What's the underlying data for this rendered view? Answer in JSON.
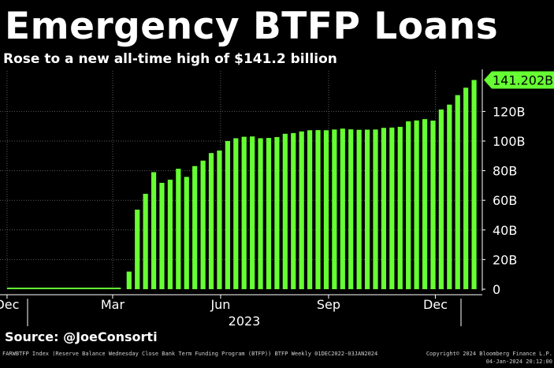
{
  "header": {
    "title": "Emergency BTFP Loans",
    "subtitle": "Rose to a new all-time high of $141.2 billion"
  },
  "chart_data": {
    "type": "bar",
    "color": "#66ff33",
    "ylim": [
      0,
      150
    ],
    "yticks": [
      {
        "value": 0,
        "label": "0"
      },
      {
        "value": 20,
        "label": "20B"
      },
      {
        "value": 40,
        "label": "40B"
      },
      {
        "value": 60,
        "label": "60B"
      },
      {
        "value": 80,
        "label": "80B"
      },
      {
        "value": 100,
        "label": "100B"
      },
      {
        "value": 120,
        "label": "120B"
      }
    ],
    "last_value_label": "141.202B",
    "last_value": 141.202,
    "xlim": [
      "2022-11-25",
      "2024-01-10"
    ],
    "xticks": [
      {
        "date": "2022-12-01",
        "label": "Dec"
      },
      {
        "date": "2023-03-01",
        "label": "Mar"
      },
      {
        "date": "2023-06-01",
        "label": "Jun"
      },
      {
        "date": "2023-09-01",
        "label": "Sep"
      },
      {
        "date": "2023-12-01",
        "label": "Dec"
      }
    ],
    "year_label": "2023",
    "flat_series": {
      "from": "2022-12-01",
      "to": "2023-03-08",
      "value": 0
    },
    "bars": [
      {
        "date": "2023-03-15",
        "value": 11.9
      },
      {
        "date": "2023-03-22",
        "value": 53.7
      },
      {
        "date": "2023-03-29",
        "value": 64.4
      },
      {
        "date": "2023-04-05",
        "value": 79.0
      },
      {
        "date": "2023-04-12",
        "value": 71.8
      },
      {
        "date": "2023-04-19",
        "value": 73.9
      },
      {
        "date": "2023-04-26",
        "value": 81.3
      },
      {
        "date": "2023-05-03",
        "value": 75.8
      },
      {
        "date": "2023-05-10",
        "value": 83.1
      },
      {
        "date": "2023-05-17",
        "value": 86.8
      },
      {
        "date": "2023-05-24",
        "value": 91.9
      },
      {
        "date": "2023-05-31",
        "value": 93.6
      },
      {
        "date": "2023-06-07",
        "value": 100.0
      },
      {
        "date": "2023-06-14",
        "value": 101.9
      },
      {
        "date": "2023-06-21",
        "value": 102.9
      },
      {
        "date": "2023-06-28",
        "value": 103.1
      },
      {
        "date": "2023-07-05",
        "value": 101.9
      },
      {
        "date": "2023-07-12",
        "value": 102.1
      },
      {
        "date": "2023-07-19",
        "value": 102.7
      },
      {
        "date": "2023-07-26",
        "value": 104.9
      },
      {
        "date": "2023-08-02",
        "value": 105.4
      },
      {
        "date": "2023-08-09",
        "value": 106.5
      },
      {
        "date": "2023-08-16",
        "value": 107.3
      },
      {
        "date": "2023-08-23",
        "value": 107.4
      },
      {
        "date": "2023-08-30",
        "value": 107.3
      },
      {
        "date": "2023-09-06",
        "value": 107.8
      },
      {
        "date": "2023-09-13",
        "value": 108.4
      },
      {
        "date": "2023-09-20",
        "value": 107.9
      },
      {
        "date": "2023-09-27",
        "value": 107.6
      },
      {
        "date": "2023-10-04",
        "value": 107.7
      },
      {
        "date": "2023-10-11",
        "value": 107.8
      },
      {
        "date": "2023-10-18",
        "value": 108.9
      },
      {
        "date": "2023-10-25",
        "value": 109.1
      },
      {
        "date": "2023-11-01",
        "value": 109.6
      },
      {
        "date": "2023-11-08",
        "value": 113.3
      },
      {
        "date": "2023-11-15",
        "value": 113.9
      },
      {
        "date": "2023-11-22",
        "value": 114.8
      },
      {
        "date": "2023-11-29",
        "value": 113.8
      },
      {
        "date": "2023-12-06",
        "value": 121.3
      },
      {
        "date": "2023-12-13",
        "value": 124.6
      },
      {
        "date": "2023-12-20",
        "value": 131.0
      },
      {
        "date": "2023-12-27",
        "value": 136.0
      },
      {
        "date": "2024-01-03",
        "value": 141.202
      }
    ]
  },
  "footer": {
    "source": "Source: @JoeConsorti",
    "description": "FARWBTFP Index (Reserve Balance Wednesday Close Bank Term Funding Program (BTFP)) BTFP  Weekly 01DEC2022-03JAN2024",
    "copyright": "Copyright© 2024 Bloomberg Finance L.P.",
    "timestamp": "04-Jan-2024 20:12:00"
  }
}
